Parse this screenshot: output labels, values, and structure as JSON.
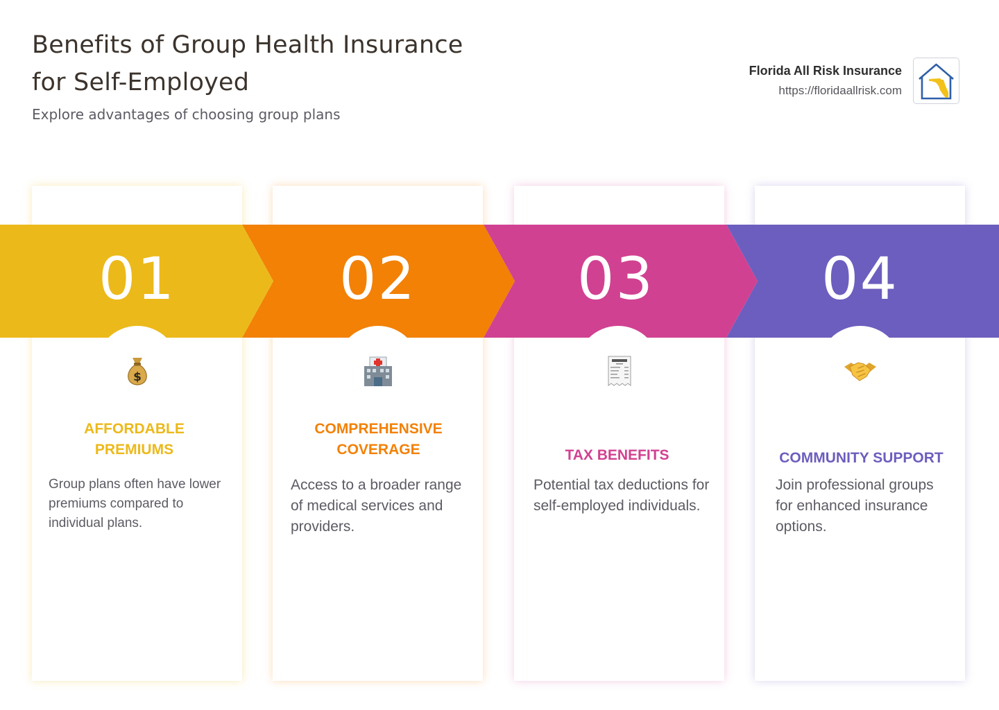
{
  "header": {
    "title": "Benefits of Group Health Insurance for Self-Employed",
    "subtitle": "Explore advantages of choosing group plans"
  },
  "brand": {
    "name": "Florida All Risk Insurance",
    "url": "https://floridaallrisk.com",
    "logo_icon": "house-with-florida-map-icon"
  },
  "colors": {
    "step1": "#ecb91a",
    "step2": "#f28106",
    "step3": "#d14191",
    "step4": "#6c5ebe"
  },
  "cards": [
    {
      "number": "01",
      "icon": "money-bag-icon",
      "title": "AFFORDABLE PREMIUMS",
      "description": "Group plans often have lower premiums compared to individual plans."
    },
    {
      "number": "02",
      "icon": "hospital-icon",
      "title": "COMPREHENSIVE COVERAGE",
      "description": "Access to a broader range of medical services and providers."
    },
    {
      "number": "03",
      "icon": "receipt-icon",
      "title": "TAX BENEFITS",
      "description": "Potential tax deductions for self-employed individuals."
    },
    {
      "number": "04",
      "icon": "handshake-icon",
      "title": "COMMUNITY SUPPORT",
      "description": "Join professional groups for enhanced insurance options."
    }
  ]
}
